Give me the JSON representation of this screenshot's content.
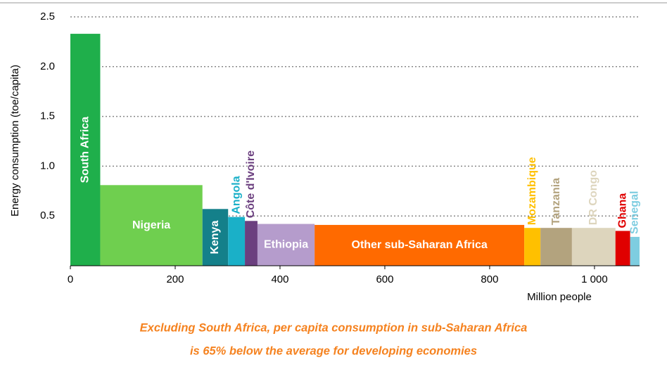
{
  "chart_data": {
    "type": "bar",
    "y_label": "Energy consumption  (toe/capita)",
    "x_label": "Million people",
    "caption": [
      "Excluding South Africa, per capita consumption in sub-Saharan Africa",
      "is 65% below the average for developing economies"
    ],
    "categories": [
      "South Africa",
      "Nigeria",
      "Kenya",
      "Angola",
      "Côte d'Ivoire",
      "Ethiopia",
      "Other sub-Saharan Africa",
      "Mozambique",
      "Tanzania",
      "DR Congo",
      "Ghana",
      "Senegal"
    ],
    "values": [
      2.33,
      0.81,
      0.57,
      0.49,
      0.45,
      0.42,
      0.41,
      0.38,
      0.38,
      0.38,
      0.35,
      0.29
    ],
    "bins": [
      0,
      57,
      252,
      301,
      333,
      357,
      466,
      866,
      897,
      957,
      1040,
      1068,
      1086
    ],
    "colors": [
      "#1faf4b",
      "#6fcf4f",
      "#14808a",
      "#1ab0c8",
      "#6b3f7f",
      "#b59ccc",
      "#ff6a00",
      "#ffc000",
      "#b3a37e",
      "#ddd5bd",
      "#e00000",
      "#7ecde0"
    ],
    "xlim": [
      0,
      1086
    ],
    "ylim": [
      0,
      2.5
    ],
    "xticks": [
      0,
      200,
      400,
      600,
      800,
      {
        "value": 1000,
        "label": "1 000"
      }
    ],
    "yticks": [
      0.5,
      {
        "value": 1,
        "label": "1.0"
      },
      1.5,
      {
        "value": 2,
        "label": "2.0"
      },
      2.5
    ],
    "grid": true
  }
}
